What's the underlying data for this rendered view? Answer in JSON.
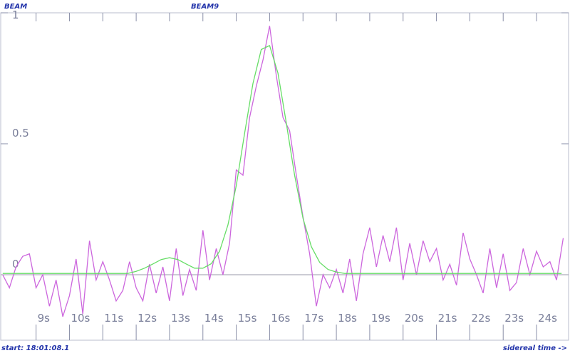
{
  "chart_data": {
    "type": "line",
    "title": "BEAM",
    "subtitle": "BEAM9",
    "annotations": [
      "start: 18:01:08.1",
      "sidereal time ->"
    ],
    "xlim": [
      7.94,
      24.96
    ],
    "ylim": [
      -0.25,
      1
    ],
    "xticks": [
      {
        "value": 9,
        "label": "9s"
      },
      {
        "value": 10,
        "label": "10s"
      },
      {
        "value": 11,
        "label": "11s"
      },
      {
        "value": 12,
        "label": "12s"
      },
      {
        "value": 13,
        "label": "13s"
      },
      {
        "value": 14,
        "label": "14s"
      },
      {
        "value": 15,
        "label": "15s"
      },
      {
        "value": 16,
        "label": "16s"
      },
      {
        "value": 17,
        "label": "17s"
      },
      {
        "value": 18,
        "label": "18s"
      },
      {
        "value": 19,
        "label": "19s"
      },
      {
        "value": 20,
        "label": "20s"
      },
      {
        "value": 21,
        "label": "21s"
      },
      {
        "value": 22,
        "label": "22s"
      },
      {
        "value": 23,
        "label": "23s"
      },
      {
        "value": 24,
        "label": "24s"
      }
    ],
    "yticks": [
      0,
      0.5,
      1
    ],
    "series": [
      {
        "color": "#cc66dd",
        "x": [
          8.0,
          8.2,
          8.4,
          8.6,
          8.8,
          9.0,
          9.2,
          9.4,
          9.6,
          9.8,
          10.0,
          10.2,
          10.4,
          10.6,
          10.8,
          11.0,
          11.2,
          11.4,
          11.6,
          11.8,
          12.0,
          12.2,
          12.4,
          12.6,
          12.8,
          13.0,
          13.2,
          13.4,
          13.6,
          13.8,
          14.0,
          14.2,
          14.4,
          14.6,
          14.8,
          15.0,
          15.2,
          15.4,
          15.6,
          15.8,
          16.0,
          16.2,
          16.4,
          16.6,
          16.8,
          17.0,
          17.2,
          17.4,
          17.6,
          17.8,
          18.0,
          18.2,
          18.4,
          18.6,
          18.8,
          19.0,
          19.2,
          19.4,
          19.6,
          19.8,
          20.0,
          20.2,
          20.4,
          20.6,
          20.8,
          21.0,
          21.2,
          21.4,
          21.6,
          21.8,
          22.0,
          22.2,
          22.4,
          22.6,
          22.8,
          23.0,
          23.2,
          23.4,
          23.6,
          23.8,
          24.0,
          24.2,
          24.4,
          24.6,
          24.8
        ],
        "values": [
          0.0,
          -0.05,
          0.03,
          0.07,
          0.08,
          -0.05,
          0.0,
          -0.12,
          -0.02,
          -0.16,
          -0.08,
          0.06,
          -0.15,
          0.13,
          -0.02,
          0.05,
          -0.02,
          -0.1,
          -0.06,
          0.05,
          -0.05,
          -0.1,
          0.04,
          -0.07,
          0.03,
          -0.1,
          0.1,
          -0.08,
          0.02,
          -0.06,
          0.17,
          -0.02,
          0.1,
          0.0,
          0.12,
          0.4,
          0.38,
          0.6,
          0.72,
          0.82,
          0.95,
          0.76,
          0.6,
          0.55,
          0.38,
          0.22,
          0.08,
          -0.12,
          0.0,
          -0.05,
          0.02,
          -0.07,
          0.06,
          -0.1,
          0.08,
          0.18,
          0.03,
          0.15,
          0.05,
          0.18,
          -0.02,
          0.12,
          0.0,
          0.13,
          0.05,
          0.1,
          -0.02,
          0.04,
          -0.04,
          0.16,
          0.06,
          0.0,
          -0.07,
          0.1,
          -0.05,
          0.08,
          -0.06,
          -0.03,
          0.1,
          0.0,
          0.09,
          0.03,
          0.05,
          -0.02,
          0.14
        ]
      },
      {
        "color": "#66dd66",
        "x": [
          8.0,
          8.25,
          8.5,
          8.75,
          9.0,
          9.25,
          9.5,
          9.75,
          10.0,
          10.25,
          10.5,
          10.75,
          11.0,
          11.25,
          11.5,
          11.75,
          12.0,
          12.25,
          12.5,
          12.75,
          13.0,
          13.25,
          13.5,
          13.75,
          14.0,
          14.25,
          14.5,
          14.75,
          15.0,
          15.25,
          15.5,
          15.75,
          16.0,
          16.25,
          16.5,
          16.75,
          17.0,
          17.25,
          17.5,
          17.75,
          18.0,
          18.25,
          18.5,
          18.75,
          19.0,
          19.25,
          19.5,
          19.75,
          20.0,
          20.25,
          20.5,
          20.75,
          21.0,
          21.25,
          21.5,
          21.75,
          22.0,
          22.25,
          22.5,
          22.75,
          23.0,
          23.25,
          23.5,
          23.75,
          24.0,
          24.25,
          24.5,
          24.75
        ],
        "values": [
          0.005,
          0.005,
          0.005,
          0.005,
          0.005,
          0.005,
          0.005,
          0.005,
          0.005,
          0.005,
          0.005,
          0.005,
          0.005,
          0.005,
          0.005,
          0.005,
          0.013,
          0.025,
          0.041,
          0.058,
          0.065,
          0.058,
          0.041,
          0.025,
          0.025,
          0.042,
          0.09,
          0.19,
          0.34,
          0.54,
          0.73,
          0.86,
          0.875,
          0.77,
          0.58,
          0.38,
          0.215,
          0.107,
          0.047,
          0.02,
          0.01,
          0.005,
          0.005,
          0.005,
          0.005,
          0.005,
          0.005,
          0.005,
          0.005,
          0.005,
          0.005,
          0.005,
          0.005,
          0.005,
          0.005,
          0.005,
          0.005,
          0.005,
          0.005,
          0.005,
          0.005,
          0.005,
          0.005,
          0.005,
          0.005,
          0.005,
          0.005,
          0.005
        ]
      }
    ]
  }
}
